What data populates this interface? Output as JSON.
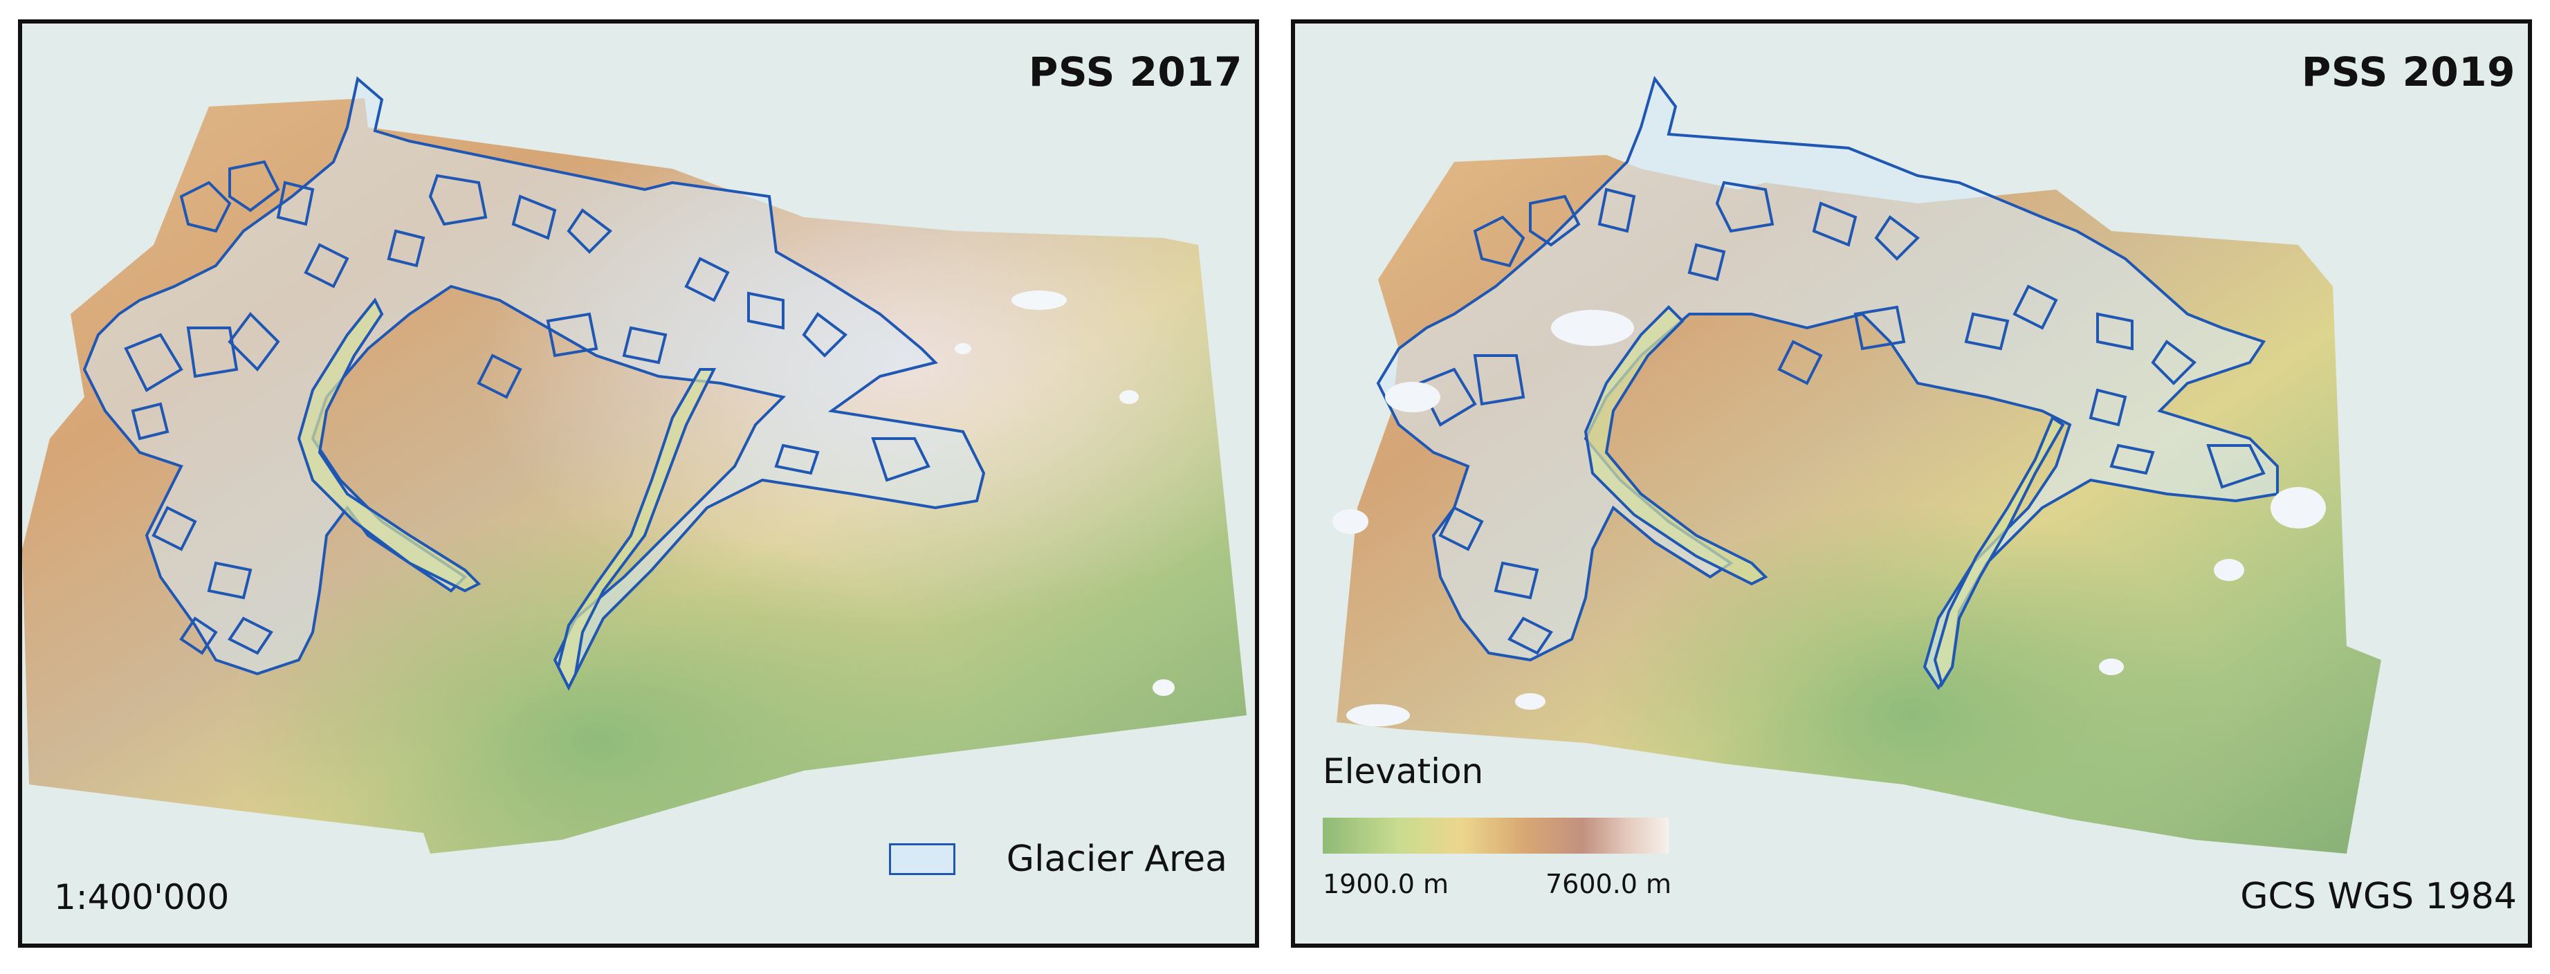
{
  "maps": {
    "left": {
      "title": "PSS 2017",
      "scale": "1:400'000"
    },
    "right": {
      "title": "PSS 2019",
      "crs": "GCS WGS 1984"
    }
  },
  "legend": {
    "glacier_label": "Glacier Area",
    "elevation_title": "Elevation",
    "elevation_min": "1900.0 m",
    "elevation_max": "7600.0 m"
  },
  "colors": {
    "background": "#e1eceb",
    "outline": "#1f57b3",
    "glacier_fill": "#d8eaf5",
    "elev_low": "#8fba78",
    "elev_mid": "#ecd68c",
    "elev_high": "#c2917f",
    "elev_top": "#f8f1ec"
  }
}
